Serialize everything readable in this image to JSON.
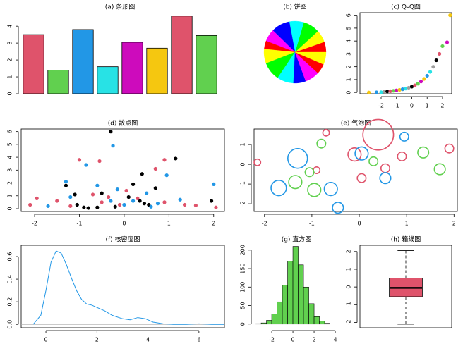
{
  "chart_data": [
    {
      "type": "bar",
      "title": "(a) 条形图",
      "values": [
        3.5,
        1.4,
        3.8,
        1.6,
        3.05,
        2.7,
        4.6,
        3.45
      ],
      "colors": [
        "#DF536B",
        "#61D04F",
        "#2297E6",
        "#28E2E5",
        "#CD0BBC",
        "#F5C710",
        "#DF536B",
        "#61D04F"
      ],
      "ylim": [
        0,
        4.8
      ],
      "yticks": [
        0,
        1,
        2,
        3,
        4
      ]
    },
    {
      "type": "pie",
      "title": "(b) 饼图",
      "values": [
        5,
        6,
        8,
        7,
        9,
        6,
        4,
        7,
        9,
        8,
        6,
        7,
        5,
        6
      ],
      "colors": [
        "#FF0000",
        "#FFFF00",
        "#00FF00",
        "#00FFFF",
        "#0000FF",
        "#FF00FF"
      ]
    },
    {
      "type": "scatter",
      "title": "(c) Q-Q图",
      "box": true,
      "series": [
        {
          "colors": [
            "#F5C710",
            "#2297E6",
            "#28E2E5",
            "#9E9E9E",
            "#000000",
            "#DF536B",
            "#61D04F",
            "#CD0BBC"
          ],
          "x": [
            -2.8,
            -2.3,
            -2.0,
            -1.8,
            -1.6,
            -1.4,
            -1.2,
            -1.0,
            -0.8,
            -0.6,
            -0.4,
            -0.2,
            0,
            0.2,
            0.4,
            0.6,
            0.8,
            1.0,
            1.2,
            1.4,
            1.6,
            1.8,
            2.0,
            2.3,
            2.5
          ],
          "y": [
            0,
            0.01,
            0.02,
            0.05,
            0.08,
            0.1,
            0.13,
            0.16,
            0.2,
            0.25,
            0.3,
            0.37,
            0.45,
            0.55,
            0.68,
            0.85,
            1.05,
            1.3,
            1.6,
            2.0,
            2.5,
            3.0,
            3.6,
            3.9,
            6.0
          ]
        }
      ],
      "xlim": [
        -3.38,
        2.6
      ],
      "xticks": [
        -2,
        -1,
        0,
        1,
        2
      ],
      "ylim": [
        -0.1,
        6.2
      ],
      "yticks": [
        0,
        1,
        2,
        3,
        4,
        5,
        6
      ]
    },
    {
      "type": "scatter",
      "title": "(d) 散点图",
      "box": true,
      "series": [
        {
          "color": "#000000",
          "x": [
            -1.3,
            -1.1,
            -0.9,
            -0.8,
            -0.5,
            -0.3,
            -0.2,
            0.1,
            0.2,
            0.4,
            0.45,
            0.55,
            0.7,
            1.15,
            1.95,
            -1.05,
            0.35,
            -0.6
          ],
          "y": [
            1.8,
            1.1,
            0.1,
            0.05,
            1.2,
            6.0,
            0.15,
            0.9,
            1.9,
            2.7,
            0.4,
            0.3,
            1.6,
            3.9,
            0.6,
            0.3,
            0.6,
            0.1
          ]
        },
        {
          "color": "#DF536B",
          "x": [
            -2.1,
            -1.95,
            -1.5,
            -1.2,
            -1.0,
            -0.7,
            -0.5,
            -0.35,
            -0.1,
            0.05,
            0.3,
            0.7,
            0.9,
            1.35,
            1.6,
            2.05,
            -0.55,
            0.9
          ],
          "y": [
            0.3,
            0.8,
            0.6,
            0.2,
            3.8,
            1.1,
            0.5,
            0.9,
            0.3,
            1.4,
            0.8,
            3.1,
            0.5,
            0.3,
            0.25,
            0.1,
            3.7,
            3.8
          ]
        },
        {
          "color": "#2297E6",
          "x": [
            -1.7,
            -1.3,
            -1.2,
            -0.85,
            -0.6,
            -0.3,
            -0.15,
            0.0,
            0.2,
            0.5,
            0.75,
            0.95,
            1.25,
            2.0,
            -0.25,
            0.6
          ],
          "y": [
            0.2,
            2.1,
            0.9,
            3.4,
            1.8,
            0.6,
            1.5,
            0.3,
            0.6,
            1.2,
            0.4,
            2.6,
            0.7,
            1.9,
            4.9,
            0.15
          ]
        }
      ],
      "xlim": [
        -2.3,
        2.24
      ],
      "xticks": [
        -2,
        -1,
        0,
        1,
        2
      ],
      "ylim": [
        -0.22,
        6.2
      ],
      "yticks": [
        0,
        1,
        2,
        3,
        4,
        5,
        6
      ]
    },
    {
      "type": "bubble",
      "title": "(e) 气泡图",
      "box": true,
      "series": [
        {
          "color": "#DF536B",
          "x": [
            -2.15,
            -0.7,
            -0.9,
            -0.1,
            0.55,
            0.4,
            0.9,
            1.9,
            0.05
          ],
          "y": [
            0.1,
            1.6,
            -0.3,
            0.5,
            -0.2,
            1.5,
            0.4,
            0.8,
            -0.7
          ],
          "size": [
            3,
            3,
            3,
            6,
            4,
            14,
            4,
            4,
            4
          ]
        },
        {
          "color": "#61D04F",
          "x": [
            -0.8,
            -1.05,
            -1.35,
            -0.95,
            1.35,
            1.7,
            0.3
          ],
          "y": [
            1.05,
            -0.4,
            -0.9,
            -1.3,
            0.6,
            -0.25,
            0.15
          ],
          "size": [
            4,
            4,
            6,
            6,
            5,
            5,
            4
          ]
        },
        {
          "color": "#2297E6",
          "x": [
            -1.3,
            -1.7,
            -0.6,
            -0.45,
            0.05,
            0.55,
            0.95
          ],
          "y": [
            0.3,
            -1.2,
            -1.25,
            -2.2,
            0.55,
            -0.7,
            1.4
          ],
          "size": [
            9,
            7,
            6,
            5,
            6,
            5,
            4
          ]
        }
      ],
      "xlim": [
        -2.22,
        2.07
      ],
      "xticks": [
        -2,
        -1,
        0,
        1,
        2
      ],
      "ylim": [
        -2.39,
        1.79
      ],
      "yticks": [
        -2,
        -1,
        0,
        1
      ]
    },
    {
      "type": "line",
      "title": "(f) 核密度图",
      "box": true,
      "color": "#2297E6",
      "x": [
        -0.5,
        -0.2,
        0,
        0.2,
        0.4,
        0.6,
        0.8,
        1.0,
        1.2,
        1.4,
        1.6,
        1.8,
        2.0,
        2.3,
        2.6,
        3.0,
        3.3,
        3.6,
        3.9,
        4.2,
        4.6,
        5.0,
        5.5,
        6.0,
        6.5,
        7.0
      ],
      "values": [
        0.0,
        0.08,
        0.3,
        0.55,
        0.65,
        0.63,
        0.53,
        0.41,
        0.3,
        0.22,
        0.18,
        0.17,
        0.15,
        0.12,
        0.08,
        0.05,
        0.04,
        0.06,
        0.05,
        0.02,
        0.005,
        0.0,
        0.0,
        0.005,
        0.0,
        0.0
      ],
      "xlim": [
        -0.97,
        7.0
      ],
      "xticks": [
        0,
        2,
        4,
        6
      ],
      "ylim": [
        -0.03,
        0.7
      ],
      "yticks": [
        {
          "value": 0,
          "label": "0.0"
        },
        {
          "value": 0.2,
          "label": "0.2"
        },
        {
          "value": 0.4,
          "label": "0.4"
        },
        {
          "value": 0.6,
          "label": "0.6"
        }
      ]
    },
    {
      "type": "histogram",
      "title": "(g) 直方图",
      "color": "#61D04F",
      "bins": [
        -3.5,
        -3,
        -2.5,
        -2,
        -1.5,
        -1,
        -0.5,
        0,
        0.5,
        1,
        1.5,
        2,
        2.5,
        3,
        3.5
      ],
      "values": [
        1,
        3,
        10,
        27,
        60,
        105,
        170,
        210,
        160,
        100,
        55,
        20,
        8,
        2
      ],
      "xlim": [
        -3.67,
        4.33
      ],
      "xticks": [
        -2,
        0,
        2,
        4
      ],
      "ylim": [
        -10,
        213
      ],
      "yticks": [
        0,
        50,
        100,
        150,
        200
      ]
    },
    {
      "type": "box",
      "title": "(h) 箱线图",
      "box": true,
      "color": "#DF536B",
      "min": -2.1,
      "q1": -0.55,
      "median": -0.05,
      "q3": 0.5,
      "max": 2.05,
      "ylim": [
        -2.3,
        2.35
      ],
      "yticks": [
        -2,
        -1,
        0,
        1,
        2
      ]
    }
  ]
}
